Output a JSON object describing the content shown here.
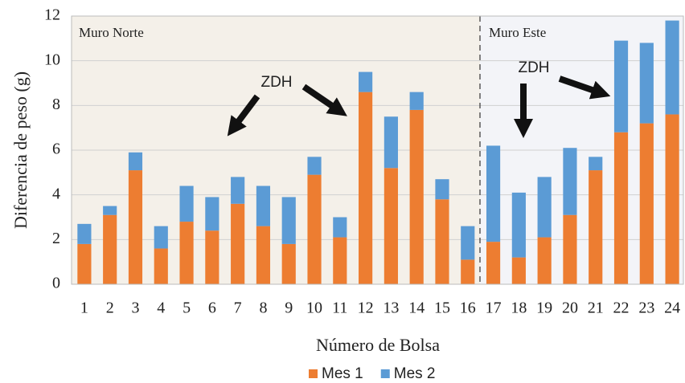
{
  "chart_data": {
    "type": "stacked_bar",
    "xlabel": "Número de Bolsa",
    "ylabel": "Diferencia de peso (g)",
    "categories": [
      "1",
      "2",
      "3",
      "4",
      "5",
      "6",
      "7",
      "8",
      "9",
      "10",
      "11",
      "12",
      "13",
      "14",
      "15",
      "16",
      "17",
      "18",
      "19",
      "20",
      "21",
      "22",
      "23",
      "24"
    ],
    "series": [
      {
        "name": "Mes 1",
        "color": "#ed7d31",
        "values": [
          1.8,
          3.1,
          5.1,
          1.6,
          2.8,
          2.4,
          3.6,
          2.6,
          1.8,
          4.9,
          2.1,
          8.6,
          5.2,
          7.8,
          3.8,
          1.1,
          1.9,
          1.2,
          2.1,
          3.1,
          5.1,
          6.8,
          7.2,
          7.6
        ]
      },
      {
        "name": "Mes 2",
        "color": "#5b9bd5",
        "values": [
          0.9,
          0.4,
          0.8,
          1.0,
          1.6,
          1.5,
          1.2,
          1.8,
          2.1,
          0.8,
          0.9,
          0.9,
          2.3,
          0.8,
          0.9,
          1.5,
          4.3,
          2.9,
          2.7,
          3.0,
          0.6,
          4.1,
          3.6,
          4.2
        ]
      }
    ],
    "ylim": [
      0,
      12
    ],
    "yticks": [
      0,
      2,
      4,
      6,
      8,
      10,
      12
    ],
    "grid": true,
    "legend": "bottom",
    "regions": [
      {
        "label": "Muro Norte"
      },
      {
        "label": "Muro Este"
      }
    ],
    "annotations": [
      {
        "text": "ZDH"
      },
      {
        "text": "ZDH"
      }
    ]
  }
}
